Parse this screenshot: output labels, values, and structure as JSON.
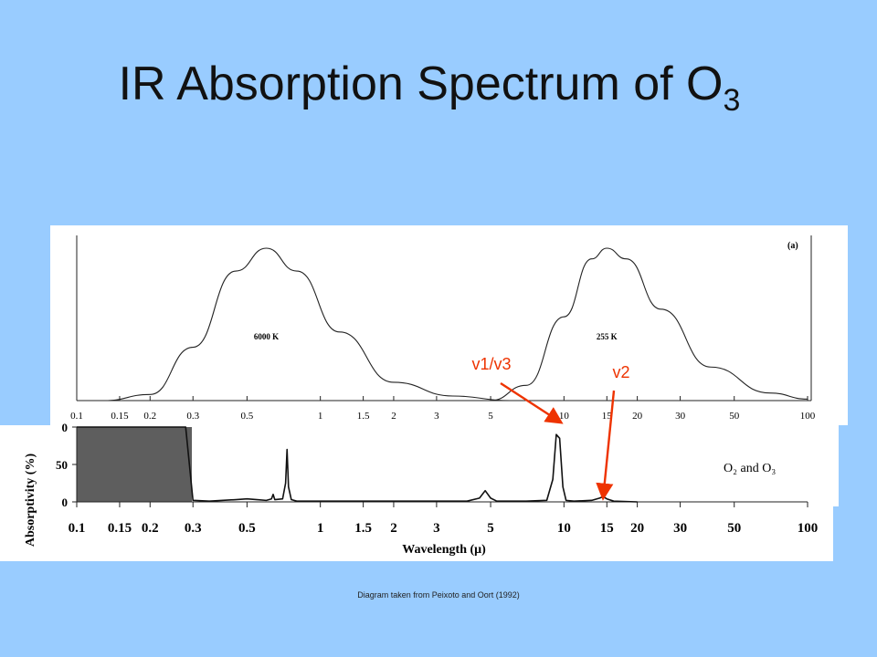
{
  "slide": {
    "title_main": "IR Absorption Spectrum of O",
    "title_sub": "3",
    "caption": "Diagram taken from Peixoto and Oort (1992)",
    "background_color": "#99ccff",
    "annotation_color": "#ee3300"
  },
  "chart_data": [
    {
      "type": "line",
      "panel_label": "(a)",
      "x_scale": "log",
      "xlim": [
        0.1,
        100
      ],
      "tick_labels": [
        "0.1",
        "0.15",
        "0.2",
        "0.3",
        "0.5",
        "1",
        "1.5",
        "2",
        "3",
        "5",
        "10",
        "15",
        "20",
        "30",
        "50",
        "100"
      ],
      "series": [
        {
          "name": "6000 K",
          "peak_x": 0.6,
          "x": [
            0.13,
            0.2,
            0.3,
            0.45,
            0.6,
            0.8,
            1.2,
            2.0,
            3.5,
            6.0
          ],
          "y": [
            0,
            0.04,
            0.35,
            0.85,
            1.0,
            0.85,
            0.45,
            0.12,
            0.03,
            0.0
          ]
        },
        {
          "name": "255 K",
          "peak_x": 15,
          "x": [
            5,
            7,
            10,
            13,
            15,
            18,
            25,
            40,
            70,
            100
          ],
          "y": [
            0.0,
            0.1,
            0.55,
            0.93,
            1.0,
            0.93,
            0.6,
            0.22,
            0.05,
            0.01
          ]
        }
      ]
    },
    {
      "type": "line",
      "ylabel": "Absorptivity (%)",
      "xlabel": "Wavelength (μ)",
      "x_scale": "log",
      "xlim": [
        0.1,
        100
      ],
      "ylim": [
        0,
        100
      ],
      "ytick_labels": [
        "0",
        "50",
        "0"
      ],
      "tick_labels": [
        "0.1",
        "0.15",
        "0.2",
        "0.3",
        "0.5",
        "1",
        "1.5",
        "2",
        "3",
        "5",
        "10",
        "15",
        "20",
        "30",
        "50",
        "100"
      ],
      "series": [
        {
          "name": "O2 and O3",
          "x": [
            0.1,
            0.28,
            0.3,
            0.35,
            0.45,
            0.5,
            0.55,
            0.6,
            0.63,
            0.64,
            0.65,
            0.7,
            0.72,
            0.73,
            0.74,
            0.76,
            0.8,
            1.0,
            2.0,
            4.0,
            4.5,
            4.75,
            5.0,
            5.3,
            7.0,
            8.5,
            9.0,
            9.3,
            9.6,
            9.9,
            10.2,
            11.0,
            13.0,
            14.0,
            14.5,
            15.0,
            16.0,
            20.0
          ],
          "y": [
            100,
            100,
            2,
            1,
            3,
            4,
            3,
            2,
            4,
            10,
            3,
            4,
            25,
            70,
            20,
            3,
            1,
            1,
            1,
            1,
            5,
            15,
            5,
            1,
            1,
            2,
            30,
            90,
            85,
            20,
            2,
            1,
            2,
            5,
            7,
            4,
            1,
            0
          ]
        }
      ]
    }
  ],
  "annotations": [
    {
      "label": "v1/v3",
      "target_x": 9.6
    },
    {
      "label": "v2",
      "target_x": 14.5
    }
  ]
}
